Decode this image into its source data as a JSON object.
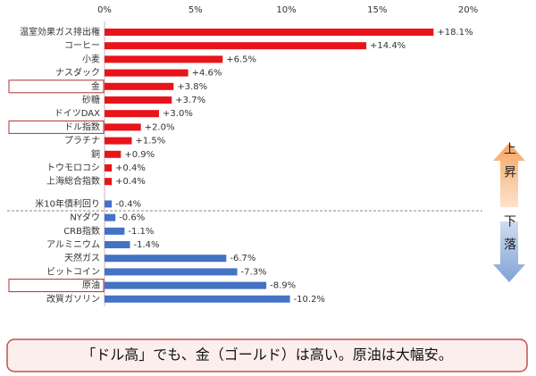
{
  "chart_data": {
    "type": "bar",
    "orientation": "horizontal",
    "categories": [
      "温室効果ガス排出権",
      "コーヒー",
      "小麦",
      "ナスダック",
      "金",
      "砂糖",
      "ドイツDAX",
      "ドル指数",
      "プラチナ",
      "銅",
      "トウモロコシ",
      "上海総合指数",
      "米10年債利回り",
      "NYダウ",
      "CRB指数",
      "アルミニウム",
      "天然ガス",
      "ビットコイン",
      "原油",
      "改質ガソリン"
    ],
    "series": [
      {
        "name": "上昇",
        "color": "#e8141a",
        "values": [
          18.1,
          14.4,
          6.5,
          4.6,
          3.8,
          3.7,
          3.0,
          2.0,
          1.5,
          0.9,
          0.4,
          0.4,
          null,
          null,
          null,
          null,
          null,
          null,
          null,
          null
        ],
        "value_labels": [
          "+18.1%",
          "+14.4%",
          "+6.5%",
          "+4.6%",
          "+3.8%",
          "+3.7%",
          "+3.0%",
          "+2.0%",
          "+1.5%",
          "+0.9%",
          "+0.4%",
          "+0.4%",
          null,
          null,
          null,
          null,
          null,
          null,
          null,
          null
        ]
      },
      {
        "name": "下落",
        "color": "#4472c4",
        "values": [
          null,
          null,
          null,
          null,
          null,
          null,
          null,
          null,
          null,
          null,
          null,
          null,
          -0.4,
          -0.6,
          -1.1,
          -1.4,
          -6.7,
          -7.3,
          -8.9,
          -10.2
        ],
        "value_labels": [
          null,
          null,
          null,
          null,
          null,
          null,
          null,
          null,
          null,
          null,
          null,
          null,
          "-0.4%",
          "-0.6%",
          "-1.1%",
          "-1.4%",
          "-6.7%",
          "-7.3%",
          "-8.9%",
          "-10.2%"
        ]
      }
    ],
    "xlim": [
      0,
      20
    ],
    "xticks": [
      {
        "value": 0,
        "label": "0%"
      },
      {
        "value": 5,
        "label": "5%"
      },
      {
        "value": 10,
        "label": "10%"
      },
      {
        "value": 15,
        "label": "15%"
      },
      {
        "value": 20,
        "label": "20%"
      }
    ],
    "grid": false,
    "highlight_indices": [
      4,
      7,
      18
    ],
    "annotation": "「ドル高」でも、金（ゴールド）は高い。原油は大幅安。"
  }
}
